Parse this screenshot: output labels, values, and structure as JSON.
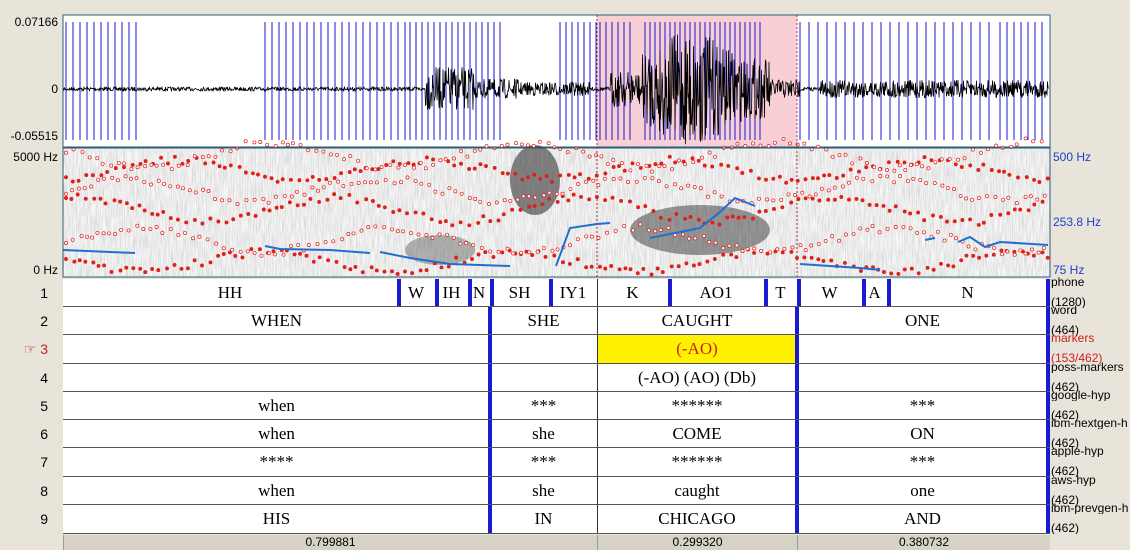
{
  "waveform": {
    "max_label": "0.07166",
    "zero_label": "0",
    "min_label": "-0.05515"
  },
  "spectrogram": {
    "top_label": "5000 Hz",
    "bottom_label": "0 Hz",
    "pitch_top": "500 Hz",
    "pitch_mid": "253.8 Hz",
    "pitch_bottom": "75 Hz"
  },
  "tiers": [
    {
      "number": "1",
      "name": "phone",
      "count": "(1280)",
      "intervals": [
        "HH",
        "W",
        "IH",
        "N",
        "SH",
        "IY1",
        "K",
        "AO1",
        "T",
        "W",
        "A",
        "N"
      ]
    },
    {
      "number": "2",
      "name": "word",
      "count": "(464)",
      "intervals": [
        "WHEN",
        "SHE",
        "CAUGHT",
        "ONE"
      ]
    },
    {
      "pointer": "☞",
      "number": "3",
      "name": "markers",
      "count": "(153/462)",
      "intervals": [
        "(-AO)"
      ]
    },
    {
      "number": "4",
      "name": "poss-markers",
      "count": "(462)",
      "intervals": [
        "(-AO) (AO) (Db)"
      ]
    },
    {
      "number": "5",
      "name": "google-hyp",
      "count": "(462)",
      "intervals": [
        "when",
        "***",
        "******",
        "***"
      ]
    },
    {
      "number": "6",
      "name": "ibm-nextgen-h",
      "count": "(462)",
      "intervals": [
        "when",
        "she",
        "COME",
        "ON"
      ]
    },
    {
      "number": "7",
      "name": "apple-hyp",
      "count": "(462)",
      "intervals": [
        "****",
        "***",
        "******",
        "***"
      ]
    },
    {
      "number": "8",
      "name": "aws-hyp",
      "count": "(462)",
      "intervals": [
        "when",
        "she",
        "caught",
        "one"
      ]
    },
    {
      "number": "9",
      "name": "ibm-prevgen-h",
      "count": "(462)",
      "intervals": [
        "HIS",
        "IN",
        "CHICAGO",
        "AND"
      ]
    }
  ],
  "durations": [
    "0.799881",
    "0.299320",
    "0.380732"
  ]
}
